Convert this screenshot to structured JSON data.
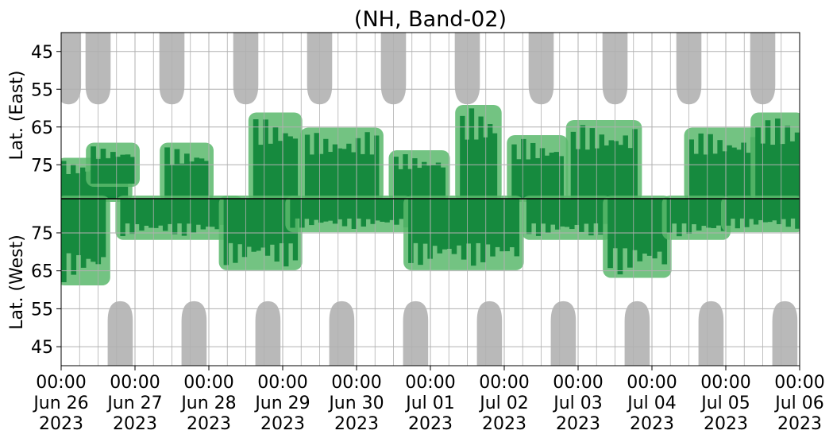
{
  "chart_data": {
    "type": "heatmap",
    "title": "(NH, Band-02)",
    "ylabel_top": "Lat. (East)",
    "ylabel_bottom": "Lat. (West)",
    "y_ticks_top": [
      "45",
      "55",
      "65",
      "75"
    ],
    "y_ticks_bottom": [
      "75",
      "65",
      "55",
      "45"
    ],
    "y_range_top": [
      40,
      84
    ],
    "y_range_bottom": [
      84,
      40
    ],
    "x_range": [
      "2023-06-26 00:00",
      "2023-07-06 00:00"
    ],
    "x_ticks": [
      [
        "00:00",
        "Jun 26",
        "2023"
      ],
      [
        "00:00",
        "Jun 27",
        "2023"
      ],
      [
        "00:00",
        "Jun 28",
        "2023"
      ],
      [
        "00:00",
        "Jun 29",
        "2023"
      ],
      [
        "00:00",
        "Jun 30",
        "2023"
      ],
      [
        "00:00",
        "Jul 01",
        "2023"
      ],
      [
        "00:00",
        "Jul 02",
        "2023"
      ],
      [
        "00:00",
        "Jul 03",
        "2023"
      ],
      [
        "00:00",
        "Jul 04",
        "2023"
      ],
      [
        "00:00",
        "Jul 05",
        "2023"
      ],
      [
        "00:00",
        "Jul 06",
        "2023"
      ]
    ],
    "grid": true,
    "colors": {
      "dark_green": "#168a3e",
      "light_green": "#5ab86c",
      "gray": "#b9b9b9",
      "grid": "#b0b0b0",
      "divider": "#000000"
    },
    "gray_regions": {
      "top_centers_days": [
        0.1,
        0.5,
        1.5,
        2.5,
        3.5,
        4.5,
        5.5,
        6.5,
        7.5,
        8.5,
        9.5
      ],
      "bottom_centers_days": [
        0.8,
        1.8,
        2.8,
        3.8,
        4.8,
        5.8,
        6.8,
        7.8,
        8.8,
        9.8
      ],
      "half_width_days": 0.17,
      "top_lat_extent": 59,
      "bottom_lat_extent": 57
    },
    "green_bands": {
      "top": [
        {
          "start": 0.0,
          "end": 0.9,
          "lat_min": 74,
          "lat_max": 84
        },
        {
          "start": 0.4,
          "end": 1.0,
          "lat_min": 70,
          "lat_max": 80
        },
        {
          "start": 1.4,
          "end": 2.0,
          "lat_min": 70,
          "lat_max": 84
        },
        {
          "start": 2.6,
          "end": 3.2,
          "lat_min": 62,
          "lat_max": 84
        },
        {
          "start": 3.3,
          "end": 4.3,
          "lat_min": 66,
          "lat_max": 84
        },
        {
          "start": 4.5,
          "end": 5.2,
          "lat_min": 72,
          "lat_max": 84
        },
        {
          "start": 5.4,
          "end": 5.9,
          "lat_min": 60,
          "lat_max": 84
        },
        {
          "start": 6.1,
          "end": 6.8,
          "lat_min": 68,
          "lat_max": 84
        },
        {
          "start": 6.9,
          "end": 7.8,
          "lat_min": 64,
          "lat_max": 84
        },
        {
          "start": 8.5,
          "end": 9.4,
          "lat_min": 66,
          "lat_max": 84
        },
        {
          "start": 9.4,
          "end": 10.0,
          "lat_min": 62,
          "lat_max": 84
        }
      ],
      "bottom": [
        {
          "start": 0.0,
          "end": 0.6,
          "lat_min": 62,
          "lat_max": 84
        },
        {
          "start": 0.8,
          "end": 2.4,
          "lat_min": 74,
          "lat_max": 84
        },
        {
          "start": 2.2,
          "end": 3.2,
          "lat_min": 66,
          "lat_max": 84
        },
        {
          "start": 3.1,
          "end": 4.7,
          "lat_min": 76,
          "lat_max": 84
        },
        {
          "start": 4.7,
          "end": 6.2,
          "lat_min": 66,
          "lat_max": 84
        },
        {
          "start": 6.3,
          "end": 7.4,
          "lat_min": 74,
          "lat_max": 84
        },
        {
          "start": 7.4,
          "end": 8.2,
          "lat_min": 64,
          "lat_max": 84
        },
        {
          "start": 8.2,
          "end": 9.0,
          "lat_min": 74,
          "lat_max": 84
        },
        {
          "start": 9.0,
          "end": 10.0,
          "lat_min": 76,
          "lat_max": 84
        }
      ]
    }
  }
}
